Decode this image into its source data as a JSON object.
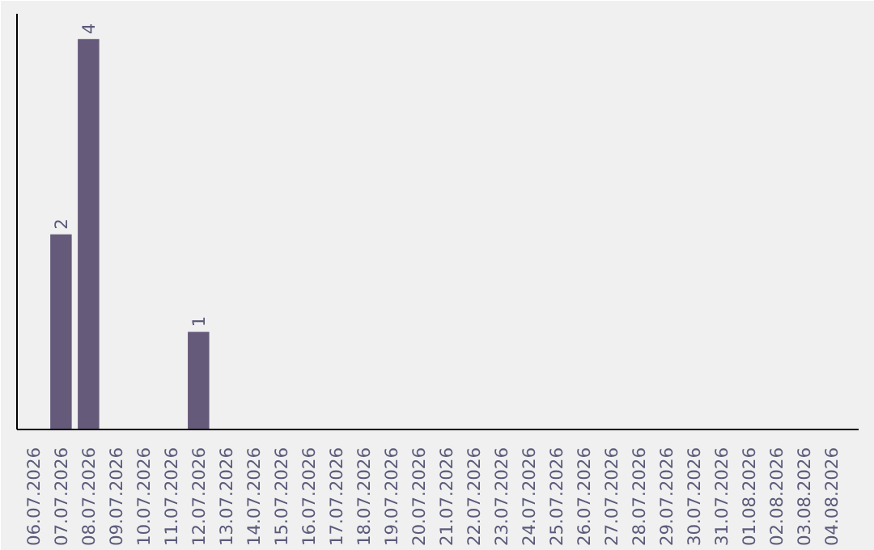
{
  "chart_data": {
    "type": "bar",
    "categories": [
      "06.07.2026",
      "07.07.2026",
      "08.07.2026",
      "09.07.2026",
      "10.07.2026",
      "11.07.2026",
      "12.07.2026",
      "13.07.2026",
      "14.07.2026",
      "15.07.2026",
      "16.07.2026",
      "17.07.2026",
      "18.07.2026",
      "19.07.2026",
      "20.07.2026",
      "21.07.2026",
      "22.07.2026",
      "23.07.2026",
      "24.07.2026",
      "25.07.2026",
      "26.07.2026",
      "27.07.2026",
      "28.07.2026",
      "29.07.2026",
      "30.07.2026",
      "31.07.2026",
      "01.08.2026",
      "02.08.2026",
      "03.08.2026",
      "04.08.2026"
    ],
    "values": [
      0,
      2,
      4,
      0,
      0,
      0,
      1,
      0,
      0,
      0,
      0,
      0,
      0,
      0,
      0,
      0,
      0,
      0,
      0,
      0,
      0,
      0,
      0,
      0,
      0,
      0,
      0,
      0,
      0,
      0
    ],
    "value_labels": [
      null,
      "2",
      "4",
      null,
      null,
      null,
      "1",
      null,
      null,
      null,
      null,
      null,
      null,
      null,
      null,
      null,
      null,
      null,
      null,
      null,
      null,
      null,
      null,
      null,
      null,
      null,
      null,
      null,
      null,
      null
    ],
    "color": "#665a7a",
    "grid": false,
    "tick_labels": "x"
  }
}
